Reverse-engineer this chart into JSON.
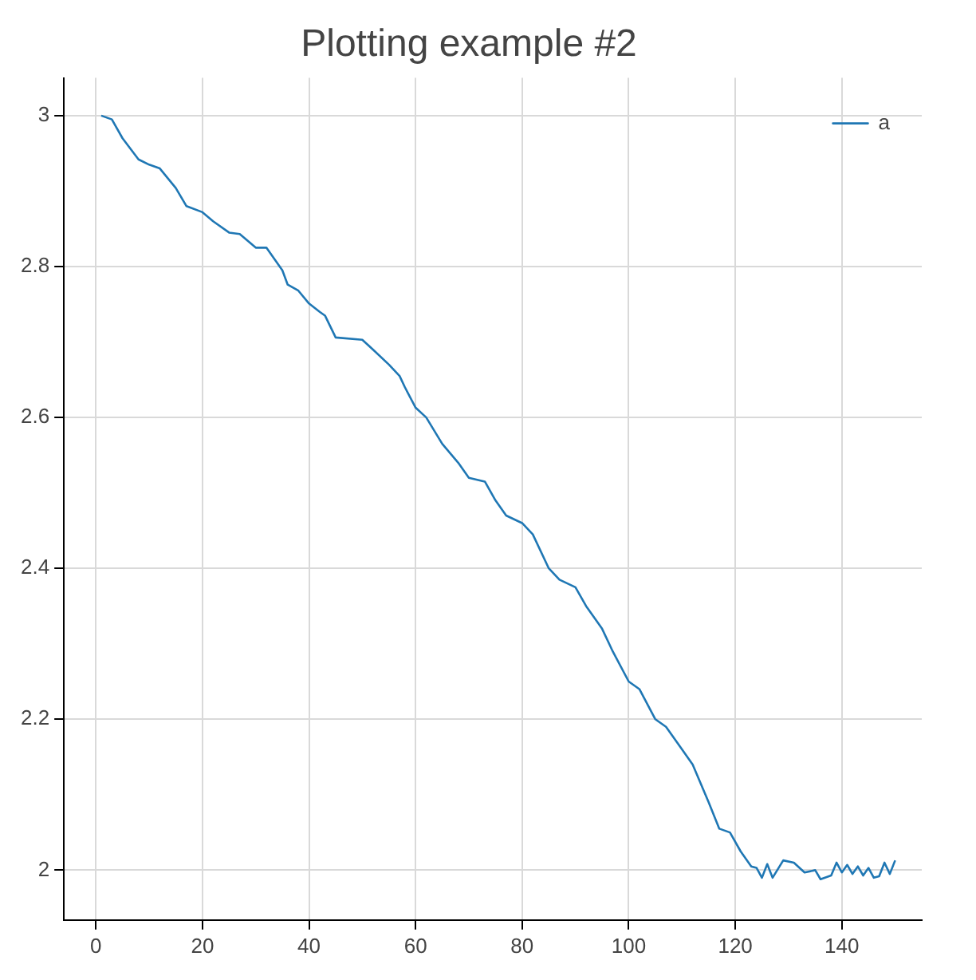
{
  "chart_data": {
    "type": "line",
    "title": "Plotting example #2",
    "series": [
      {
        "name": "a",
        "color": "#1f77b4",
        "x": [
          1,
          3,
          5,
          8,
          10,
          12,
          15,
          17,
          20,
          22,
          25,
          27,
          30,
          32,
          35,
          36,
          38,
          40,
          42,
          43,
          45,
          50,
          52,
          55,
          57,
          58,
          60,
          62,
          65,
          68,
          70,
          73,
          75,
          77,
          80,
          82,
          85,
          87,
          90,
          92,
          95,
          97,
          100,
          102,
          105,
          107,
          110,
          112,
          115,
          117,
          119,
          121,
          123,
          124,
          125,
          126,
          127,
          129,
          131,
          133,
          135,
          136,
          138,
          139,
          140,
          141,
          142,
          143,
          144,
          145,
          146,
          147,
          148,
          149,
          150
        ],
        "values": [
          3.0,
          2.995,
          2.97,
          2.942,
          2.935,
          2.93,
          2.904,
          2.88,
          2.872,
          2.86,
          2.845,
          2.843,
          2.825,
          2.825,
          2.795,
          2.776,
          2.768,
          2.751,
          2.74,
          2.735,
          2.706,
          2.703,
          2.69,
          2.67,
          2.655,
          2.64,
          2.613,
          2.6,
          2.565,
          2.54,
          2.52,
          2.515,
          2.49,
          2.47,
          2.46,
          2.445,
          2.4,
          2.385,
          2.375,
          2.35,
          2.32,
          2.29,
          2.25,
          2.24,
          2.2,
          2.19,
          2.16,
          2.14,
          2.09,
          2.055,
          2.05,
          2.025,
          2.005,
          2.003,
          1.99,
          2.008,
          1.99,
          2.013,
          2.01,
          1.997,
          2.0,
          1.988,
          1.993,
          2.01,
          1.997,
          2.007,
          1.995,
          2.005,
          1.993,
          2.003,
          1.99,
          1.992,
          2.01,
          1.995,
          2.013
        ]
      }
    ],
    "xlim": [
      -6,
      155
    ],
    "ylim": [
      1.934,
      3.05
    ],
    "xticks": [
      0,
      20,
      40,
      60,
      80,
      100,
      120,
      140
    ],
    "yticks": [
      2,
      2.2,
      2.4,
      2.6,
      2.8,
      3
    ],
    "grid": true,
    "legend": "top right",
    "marker": "none",
    "line_style": "solid"
  }
}
